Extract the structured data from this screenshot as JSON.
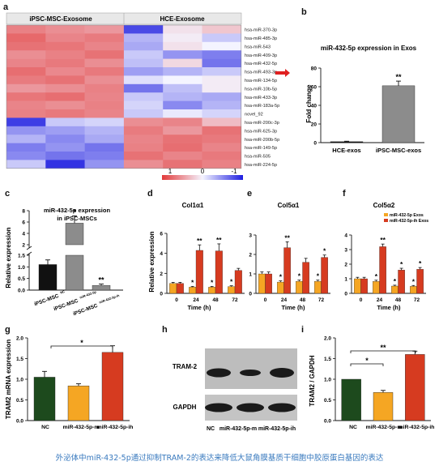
{
  "caption": "外泌体中miR-432-5p通过抑制TRAM-2的表达来降低大鼠角膜基质干细胞中胶原蛋白基因的表达",
  "colors": {
    "black_bar": "#111111",
    "gray_bar": "#8c8c8c",
    "green_bar": "#1d4a1d",
    "orange_bar": "#f5a623",
    "red_bar": "#d63b20",
    "heat_low": "#1e1ee0",
    "heat_mid": "#f4f4ff",
    "heat_high": "#e23a3a"
  },
  "panels": {
    "a": {
      "letter": "a",
      "groups": [
        "iPSC-MSC-Exosome",
        "HCE-Exosome"
      ],
      "genes": [
        "hsa-miR-370-3p",
        "hsa-miR-485-3p",
        "hsa-miR-543",
        "hsa-miR-409-3p",
        "hsa-miR-432-5p",
        "hsa-miR-493-3p",
        "hsa-miR-134-5p",
        "hsa-miR-10b-5p",
        "hsa-miR-433-3p",
        "hsa-miR-183a-5p",
        "novel_92",
        "hsa-miR-200c-3p",
        "hsa-miR-625-3p",
        "hsa-miR-200b-5p",
        "hsa-miR-149-5p",
        "hsa-miR-505",
        "hsa-miR-224-5p"
      ],
      "heat": [
        [
          0.62,
          0.55,
          0.5,
          -0.8,
          0.1,
          0.25
        ],
        [
          0.75,
          0.6,
          0.65,
          -0.3,
          0.05,
          -0.2
        ],
        [
          0.7,
          0.68,
          0.6,
          -0.35,
          0.1,
          0.0
        ],
        [
          0.55,
          0.62,
          0.7,
          -0.2,
          -0.45,
          -0.55
        ],
        [
          0.6,
          0.66,
          0.55,
          -0.25,
          0.15,
          -0.6
        ],
        [
          0.72,
          0.58,
          0.66,
          -0.4,
          -0.3,
          -0.2
        ],
        [
          0.65,
          0.7,
          0.55,
          -0.1,
          0.0,
          0.05
        ],
        [
          0.5,
          0.55,
          0.62,
          -0.6,
          -0.25,
          0.05
        ],
        [
          0.68,
          0.72,
          0.6,
          -0.2,
          -0.3,
          -0.35
        ],
        [
          0.6,
          0.55,
          0.62,
          -0.15,
          -0.5,
          -0.3
        ],
        [
          0.62,
          0.66,
          0.6,
          -0.2,
          -0.05,
          -0.15
        ],
        [
          -0.85,
          -0.2,
          -0.15,
          0.55,
          0.6,
          0.3
        ],
        [
          -0.45,
          -0.4,
          -0.3,
          0.65,
          0.5,
          0.7
        ],
        [
          -0.3,
          -0.5,
          -0.35,
          0.6,
          0.7,
          0.66
        ],
        [
          -0.55,
          -0.45,
          -0.6,
          0.62,
          0.72,
          0.6
        ],
        [
          -0.5,
          -0.6,
          -0.55,
          0.7,
          0.6,
          0.66
        ],
        [
          -0.2,
          -0.9,
          -0.45,
          0.55,
          0.7,
          0.62
        ]
      ],
      "scale_labels": [
        "1",
        "0",
        "-1"
      ]
    },
    "b": {
      "letter": "b",
      "chart_data": {
        "type": "bar",
        "title": "miR-432-5p expression in Exos",
        "ylabel": "Fold change",
        "categories": [
          "HCE-exos",
          "iPSC-MSC-exos"
        ],
        "values": [
          1,
          61
        ],
        "errors": [
          0.5,
          5
        ],
        "ylim": [
          0,
          80
        ],
        "yticks": [
          "0",
          "20",
          "40",
          "60",
          "80"
        ],
        "annotations": [
          "",
          "**"
        ]
      }
    },
    "c": {
      "letter": "c",
      "chart_data": {
        "type": "bar",
        "title": "miR-432-5p expression",
        "subtitle": "in iPSC-MSCs",
        "ylabel": "Relative expression",
        "categories": [
          "iPSC-MSC",
          "iPSC-MSC",
          "iPSC-MSC"
        ],
        "category_suffix": [
          "NC",
          "miR-432-5p",
          "miR-432-5p-ih"
        ],
        "values": [
          1.1,
          5.8,
          0.2
        ],
        "errors": [
          0.2,
          1.3,
          0.06
        ],
        "yticks": [
          "0.0",
          "0.5",
          "1.0",
          "1.5",
          "2",
          "4",
          "6",
          "8"
        ],
        "annotations": [
          "",
          "*",
          "**"
        ]
      }
    },
    "d": {
      "letter": "d",
      "chart_data": {
        "type": "bar",
        "title": "Col1α1",
        "ylabel": "Relative expression",
        "xlabel": "Time (h)",
        "categories": [
          "0",
          "24",
          "48",
          "72"
        ],
        "series": [
          {
            "values": [
              1.0,
              0.62,
              0.62,
              0.68
            ],
            "errors": [
              0.1,
              0.08,
              0.08,
              0.08
            ]
          },
          {
            "values": [
              1.0,
              4.3,
              4.25,
              2.3
            ],
            "errors": [
              0.1,
              0.55,
              0.7,
              0.2
            ]
          }
        ],
        "ylim": [
          0,
          6
        ],
        "yticks": [
          "0",
          "2",
          "4",
          "6"
        ],
        "annotations": [
          [
            "",
            "*",
            "*",
            "*"
          ],
          [
            "",
            "**",
            "**",
            ""
          ]
        ]
      }
    },
    "e": {
      "letter": "e",
      "chart_data": {
        "type": "bar",
        "title": "Col5α1",
        "xlabel": "Time (h)",
        "categories": [
          "0",
          "24",
          "48",
          "72"
        ],
        "series": [
          {
            "values": [
              1.0,
              0.58,
              0.62,
              0.62
            ],
            "errors": [
              0.1,
              0.06,
              0.06,
              0.06
            ]
          },
          {
            "values": [
              1.0,
              2.35,
              1.6,
              1.85
            ],
            "errors": [
              0.1,
              0.3,
              0.2,
              0.12
            ]
          }
        ],
        "ylim": [
          0,
          3
        ],
        "yticks": [
          "0",
          "1",
          "2",
          "3"
        ],
        "annotations": [
          [
            "",
            "*",
            "*",
            "*"
          ],
          [
            "",
            "**",
            "",
            "*"
          ]
        ]
      }
    },
    "f": {
      "letter": "f",
      "chart_data": {
        "type": "bar",
        "title": "Col5α2",
        "xlabel": "Time (h)",
        "categories": [
          "0",
          "24",
          "48",
          "72"
        ],
        "legend": [
          "miR-432-5p Exos",
          "miR-432-5p-ih Exos"
        ],
        "series": [
          {
            "name": "miR-432-5p Exos",
            "values": [
              1.0,
              0.82,
              0.5,
              0.48
            ],
            "errors": [
              0.1,
              0.08,
              0.06,
              0.06
            ]
          },
          {
            "name": "miR-432-5p-ih Exos",
            "values": [
              1.0,
              3.2,
              1.6,
              1.65
            ],
            "errors": [
              0.1,
              0.18,
              0.12,
              0.12
            ]
          }
        ],
        "ylim": [
          0,
          4
        ],
        "yticks": [
          "0",
          "1",
          "2",
          "3",
          "4"
        ],
        "annotations": [
          [
            "",
            "*",
            "*",
            "*"
          ],
          [
            "",
            "**",
            "*",
            "*"
          ]
        ]
      }
    },
    "g": {
      "letter": "g",
      "chart_data": {
        "type": "bar",
        "ylabel": "TRAM2 mRNA expression",
        "categories": [
          "NC",
          "miR-432-5p-m",
          "miR-432-5p-ih"
        ],
        "values": [
          1.05,
          0.84,
          1.65
        ],
        "errors": [
          0.14,
          0.05,
          0.16
        ],
        "ylim": [
          0,
          2.0
        ],
        "yticks": [
          "0.0",
          "0.5",
          "1.0",
          "1.5",
          "2.0"
        ],
        "significance": "*"
      }
    },
    "h": {
      "letter": "h",
      "bands": [
        "TRAM-2",
        "GAPDH"
      ],
      "lanes": [
        "NC",
        "miR-432-5p-m",
        "miR-432-5p-ih"
      ]
    },
    "i": {
      "letter": "i",
      "chart_data": {
        "type": "bar",
        "ylabel": "TRAM2 / GAPDH",
        "categories": [
          "NC",
          "miR-432-5p-m",
          "miR-432-5p-ih"
        ],
        "values": [
          1.0,
          0.68,
          1.6
        ],
        "errors": [
          0.0,
          0.05,
          0.08
        ],
        "ylim": [
          0,
          2.0
        ],
        "yticks": [
          "0.0",
          "0.5",
          "1.0",
          "1.5",
          "2.0"
        ],
        "significance": [
          "*",
          "**"
        ]
      }
    }
  }
}
